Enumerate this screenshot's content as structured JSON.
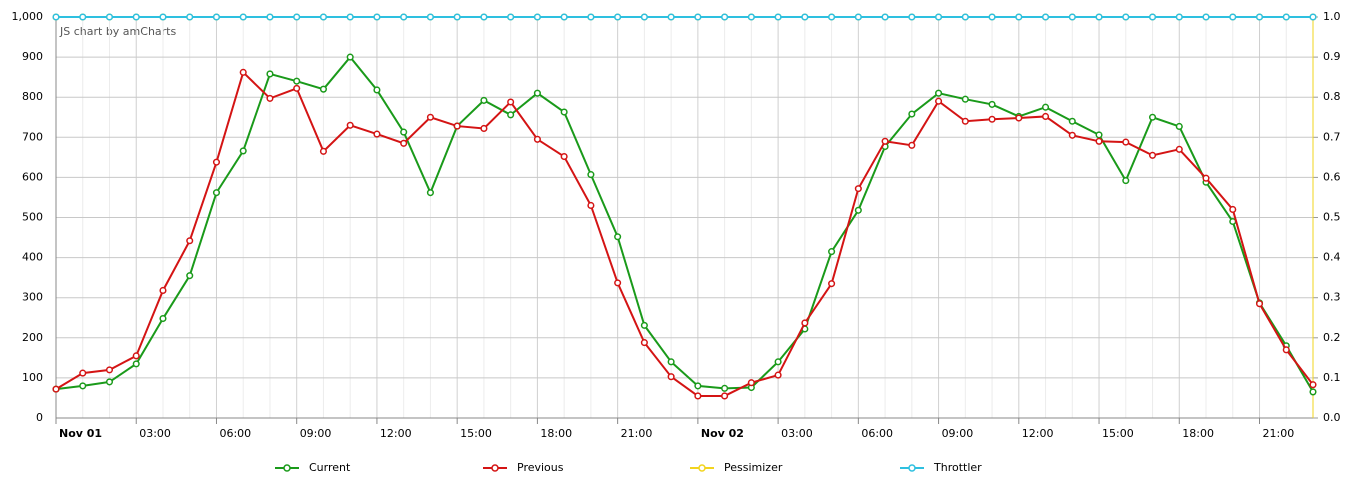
{
  "chart_data": {
    "type": "line",
    "annotation": "JS chart by amCharts",
    "categories": [
      "Nov 01",
      null,
      null,
      "03:00",
      null,
      null,
      "06:00",
      null,
      null,
      "09:00",
      null,
      null,
      "12:00",
      null,
      null,
      "15:00",
      null,
      null,
      "18:00",
      null,
      null,
      "21:00",
      null,
      null,
      "Nov 02",
      null,
      null,
      "03:00",
      null,
      null,
      "06:00",
      null,
      null,
      "09:00",
      null,
      null,
      "12:00",
      null,
      null,
      "15:00",
      null,
      null,
      "18:00",
      null,
      null,
      "21:00",
      null,
      null
    ],
    "series": [
      {
        "name": "Current",
        "color": "#1a9a1a",
        "values": [
          72,
          80,
          90,
          135,
          248,
          355,
          562,
          666,
          858,
          840,
          820,
          900,
          818,
          713,
          562,
          728,
          792,
          756,
          810,
          763,
          607,
          452,
          231,
          140,
          80,
          74,
          76,
          140,
          222,
          415,
          518,
          677,
          758,
          810,
          795,
          782,
          752,
          775,
          740,
          706,
          592,
          750,
          727,
          588,
          490,
          287,
          180,
          65
        ]
      },
      {
        "name": "Previous",
        "color": "#d41414",
        "values": [
          72,
          112,
          120,
          155,
          318,
          442,
          638,
          862,
          797,
          822,
          665,
          730,
          708,
          685,
          750,
          728,
          722,
          788,
          695,
          652,
          530,
          337,
          188,
          103,
          55,
          55,
          88,
          107,
          237,
          335,
          572,
          690,
          680,
          790,
          740,
          745,
          748,
          752,
          705,
          690,
          688,
          655,
          670,
          598,
          520,
          285,
          170,
          83
        ]
      },
      {
        "name": "Pessimizer",
        "color": "#f2d41e",
        "axis": "y2",
        "values": [
          1,
          1,
          1,
          1,
          1,
          1,
          1,
          1,
          1,
          1,
          1,
          1,
          1,
          1,
          1,
          1,
          1,
          1,
          1,
          1,
          1,
          1,
          1,
          1,
          1,
          1,
          1,
          1,
          1,
          1,
          1,
          1,
          1,
          1,
          1,
          1,
          1,
          1,
          1,
          1,
          1,
          1,
          1,
          1,
          1,
          1,
          1,
          1
        ]
      },
      {
        "name": "Throttler",
        "color": "#2ec0e0",
        "axis": "y2",
        "values": [
          1,
          1,
          1,
          1,
          1,
          1,
          1,
          1,
          1,
          1,
          1,
          1,
          1,
          1,
          1,
          1,
          1,
          1,
          1,
          1,
          1,
          1,
          1,
          1,
          1,
          1,
          1,
          1,
          1,
          1,
          1,
          1,
          1,
          1,
          1,
          1,
          1,
          1,
          1,
          1,
          1,
          1,
          1,
          1,
          1,
          1,
          1,
          1
        ]
      }
    ],
    "ylim": [
      0,
      1000
    ],
    "yticks": [
      0,
      100,
      200,
      300,
      400,
      500,
      600,
      700,
      800,
      900,
      {
        "value": 1000,
        "label": "1,000"
      }
    ],
    "y2lim": [
      0,
      1
    ],
    "y2ticks": [
      {
        "value": 0,
        "label": "0.0"
      },
      0.1,
      0.2,
      0.3,
      0.4,
      0.5,
      0.6,
      0.7,
      0.8,
      0.9,
      {
        "value": 1,
        "label": "1.0"
      }
    ],
    "grid": true
  }
}
